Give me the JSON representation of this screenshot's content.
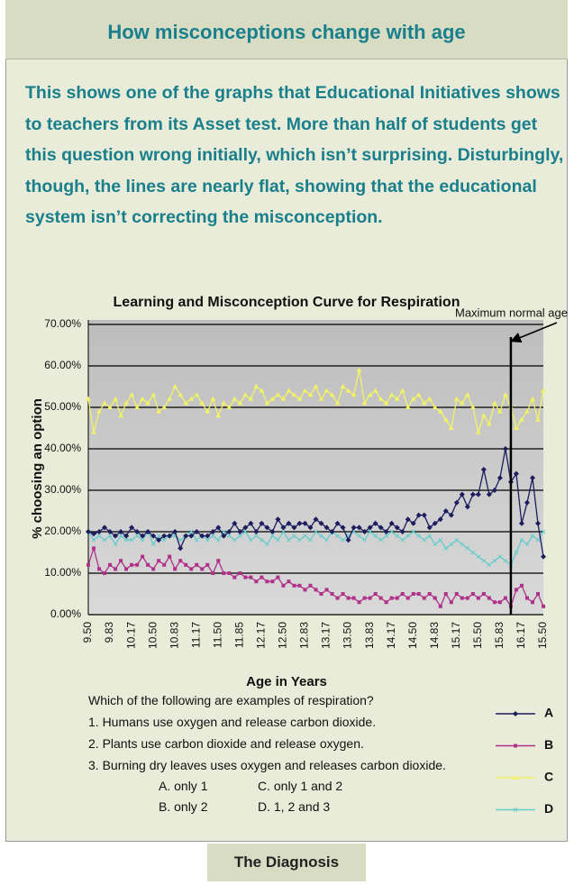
{
  "header": {
    "title": "How misconceptions change with age"
  },
  "intro": "This shows one of the graphs that Educational Initiatives shows to teachers from its Asset test. More than half of students get this question wrong initially, which isn’t surprising. Disturbingly, though, the lines are nearly flat, showing that the educational system isn’t correcting the misconception.",
  "chart_data": {
    "type": "line",
    "title": "Learning and Misconception Curve for Respiration",
    "x_label": "Age in Years",
    "y_label": "% choosing an option",
    "annotation": {
      "text": "Maximum normal age",
      "category_index": 78
    },
    "categories": [
      "9.50",
      null,
      null,
      null,
      "9.83",
      null,
      null,
      null,
      "10.17",
      null,
      null,
      null,
      "10.50",
      null,
      null,
      null,
      "10.83",
      null,
      null,
      null,
      "11.17",
      null,
      null,
      null,
      "11.50",
      null,
      null,
      null,
      "11.85",
      null,
      null,
      null,
      "12.17",
      null,
      null,
      null,
      "12.50",
      null,
      null,
      null,
      "12.83",
      null,
      null,
      null,
      "13.17",
      null,
      null,
      null,
      "13.50",
      null,
      null,
      null,
      "13.83",
      null,
      null,
      null,
      "14.17",
      null,
      null,
      null,
      "14.50",
      null,
      null,
      null,
      "14.83",
      null,
      null,
      null,
      "15.17",
      null,
      null,
      null,
      "15.50",
      null,
      null,
      null,
      "15.83",
      null,
      null,
      null,
      "16.17",
      null,
      null,
      null,
      "15.50"
    ],
    "ylim": [
      0,
      70
    ],
    "yticks": [
      {
        "value": 0,
        "label": "0.00%"
      },
      {
        "value": 10,
        "label": "10.00%"
      },
      {
        "value": 20,
        "label": "20.00%"
      },
      {
        "value": 30,
        "label": "30.00%"
      },
      {
        "value": 40,
        "label": "40.00%"
      },
      {
        "value": 50,
        "label": "50.00%"
      },
      {
        "value": 60,
        "label": "60.00%"
      },
      {
        "value": 70,
        "label": "70.00%"
      }
    ],
    "grid": true,
    "series": [
      {
        "name": "A",
        "color": "#1c1c5e",
        "marker": "diamond",
        "values": [
          20,
          19.5,
          20,
          21,
          20,
          19,
          20,
          19,
          21,
          20,
          19,
          20,
          19,
          18,
          19,
          19,
          20,
          16,
          19,
          19,
          20,
          19,
          19,
          20,
          21,
          19,
          20,
          22,
          20,
          21,
          22,
          20,
          22,
          21,
          20,
          23,
          21,
          22,
          21,
          22,
          22,
          21,
          23,
          22,
          21,
          20,
          22,
          21,
          18,
          21,
          21,
          20,
          21,
          22,
          21,
          20,
          22,
          21,
          20,
          23,
          22,
          24,
          24,
          21,
          22,
          23,
          25,
          24,
          27,
          29,
          26,
          29,
          29,
          35,
          29,
          30,
          33,
          40,
          32,
          34,
          22,
          27,
          33,
          22,
          14
        ]
      },
      {
        "name": "B",
        "color": "#b0308a",
        "marker": "square",
        "values": [
          12,
          16,
          11,
          10,
          12,
          11,
          13,
          11,
          12,
          12,
          14,
          12,
          11,
          13,
          12,
          14,
          11,
          13,
          12,
          11,
          12,
          11,
          12,
          10,
          13,
          10,
          10,
          9,
          10,
          9,
          9,
          8,
          9,
          8,
          8,
          9,
          7,
          8,
          7,
          7,
          6,
          7,
          6,
          5,
          6,
          5,
          4,
          5,
          4,
          4,
          3,
          4,
          4,
          5,
          4,
          3,
          4,
          4,
          5,
          4,
          5,
          5,
          4,
          5,
          4,
          2,
          5,
          3,
          5,
          4,
          4,
          5,
          4,
          5,
          4,
          3,
          3,
          4,
          2,
          6,
          7,
          4,
          3,
          5,
          2
        ]
      },
      {
        "name": "C",
        "color": "#f2f266",
        "marker": "triangle",
        "values": [
          52,
          44,
          49,
          51,
          50,
          52,
          48,
          51,
          53,
          50,
          52,
          51,
          53,
          49,
          50,
          52,
          55,
          53,
          51,
          52,
          53,
          51,
          49,
          52,
          48,
          51,
          50,
          52,
          51,
          53,
          52,
          55,
          54,
          51,
          52,
          53,
          52,
          54,
          53,
          52,
          54,
          53,
          55,
          52,
          54,
          53,
          51,
          55,
          54,
          53,
          59,
          51,
          53,
          54,
          52,
          51,
          53,
          52,
          54,
          50,
          52,
          53,
          51,
          52,
          50,
          49,
          47,
          45,
          52,
          51,
          53,
          50,
          44,
          48,
          46,
          51,
          49,
          53,
          50,
          45,
          47,
          49,
          52,
          47,
          54
        ]
      },
      {
        "name": "D",
        "color": "#66cccc",
        "marker": "x",
        "values": [
          20,
          18,
          19,
          18,
          19,
          17,
          19,
          18,
          18,
          19,
          18,
          20,
          17,
          19,
          18,
          19,
          19,
          18,
          19,
          20,
          18,
          19,
          18,
          19,
          18,
          20,
          19,
          18,
          19,
          20,
          18,
          19,
          18,
          17,
          19,
          18,
          20,
          18,
          19,
          18,
          19,
          18,
          20,
          19,
          18,
          20,
          19,
          18,
          19,
          20,
          19,
          18,
          20,
          19,
          18,
          19,
          20,
          19,
          18,
          19,
          20,
          19,
          18,
          19,
          17,
          18,
          16,
          17,
          18,
          17,
          16,
          15,
          14,
          13,
          12,
          13,
          14,
          13,
          12,
          15,
          18,
          17,
          19,
          18,
          20
        ]
      }
    ]
  },
  "question": {
    "stem": "Which of the following are examples of respiration?",
    "statements": [
      "1. Humans use oxygen and release carbon dioxide.",
      "2. Plants use carbon dioxide and release oxygen.",
      "3. Burning dry leaves uses oxygen and releases carbon dioxide."
    ],
    "options": [
      "A. only 1",
      "C. only 1 and 2",
      "B. only 2",
      "D. 1, 2 and 3"
    ]
  },
  "footer": {
    "tab": "The Diagnosis"
  }
}
